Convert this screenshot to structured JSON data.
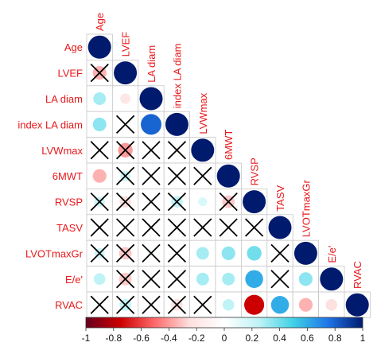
{
  "chart_data": {
    "type": "heatmap",
    "style": "lower-triangle correlogram, circles sized and coloured by correlation, crosses on non-significant cells",
    "variables": [
      "Age",
      "LVEF",
      "LA diam",
      "index LA diam",
      "LVWmax",
      "6MWT",
      "RVSP",
      "TASV",
      "LVOTmaxGr",
      "E/e'",
      "RVAC"
    ],
    "cells": [
      {
        "row": "Age",
        "col": "Age",
        "r": 1.0,
        "significant": true
      },
      {
        "row": "LVEF",
        "col": "Age",
        "r": -0.35,
        "significant": false
      },
      {
        "row": "LVEF",
        "col": "LVEF",
        "r": 1.0,
        "significant": true
      },
      {
        "row": "LA diam",
        "col": "Age",
        "r": 0.3,
        "significant": true
      },
      {
        "row": "LA diam",
        "col": "LVEF",
        "r": -0.2,
        "significant": true
      },
      {
        "row": "LA diam",
        "col": "LA diam",
        "r": 1.0,
        "significant": true
      },
      {
        "row": "index LA diam",
        "col": "Age",
        "r": 0.35,
        "significant": true
      },
      {
        "row": "index LA diam",
        "col": "LVEF",
        "r": -0.05,
        "significant": false
      },
      {
        "row": "index LA diam",
        "col": "LA diam",
        "r": 0.8,
        "significant": true
      },
      {
        "row": "index LA diam",
        "col": "index LA diam",
        "r": 1.0,
        "significant": true
      },
      {
        "row": "LVWmax",
        "col": "Age",
        "r": -0.05,
        "significant": false
      },
      {
        "row": "LVWmax",
        "col": "LVEF",
        "r": -0.4,
        "significant": false
      },
      {
        "row": "LVWmax",
        "col": "LA diam",
        "r": -0.05,
        "significant": false
      },
      {
        "row": "LVWmax",
        "col": "index LA diam",
        "r": -0.1,
        "significant": false
      },
      {
        "row": "LVWmax",
        "col": "LVWmax",
        "r": 1.0,
        "significant": true
      },
      {
        "row": "6MWT",
        "col": "Age",
        "r": -0.35,
        "significant": true
      },
      {
        "row": "6MWT",
        "col": "LVEF",
        "r": 0.2,
        "significant": false
      },
      {
        "row": "6MWT",
        "col": "LA diam",
        "r": -0.05,
        "significant": false
      },
      {
        "row": "6MWT",
        "col": "index LA diam",
        "r": -0.05,
        "significant": false
      },
      {
        "row": "6MWT",
        "col": "LVWmax",
        "r": 0.05,
        "significant": false
      },
      {
        "row": "6MWT",
        "col": "6MWT",
        "r": 1.0,
        "significant": true
      },
      {
        "row": "RVSP",
        "col": "Age",
        "r": 0.2,
        "significant": false
      },
      {
        "row": "RVSP",
        "col": "LVEF",
        "r": -0.25,
        "significant": false
      },
      {
        "row": "RVSP",
        "col": "LA diam",
        "r": -0.05,
        "significant": false
      },
      {
        "row": "RVSP",
        "col": "index LA diam",
        "r": 0.25,
        "significant": false
      },
      {
        "row": "RVSP",
        "col": "LVWmax",
        "r": 0.15,
        "significant": true
      },
      {
        "row": "RVSP",
        "col": "6MWT",
        "r": -0.3,
        "significant": false
      },
      {
        "row": "RVSP",
        "col": "RVSP",
        "r": 1.0,
        "significant": true
      },
      {
        "row": "TASV",
        "col": "Age",
        "r": 0.05,
        "significant": false
      },
      {
        "row": "TASV",
        "col": "LVEF",
        "r": -0.05,
        "significant": false
      },
      {
        "row": "TASV",
        "col": "LA diam",
        "r": 0.05,
        "significant": false
      },
      {
        "row": "TASV",
        "col": "index LA diam",
        "r": -0.05,
        "significant": false
      },
      {
        "row": "TASV",
        "col": "LVWmax",
        "r": 0.05,
        "significant": false
      },
      {
        "row": "TASV",
        "col": "6MWT",
        "r": 0.05,
        "significant": false
      },
      {
        "row": "TASV",
        "col": "RVSP",
        "r": -0.05,
        "significant": false
      },
      {
        "row": "TASV",
        "col": "TASV",
        "r": 1.0,
        "significant": true
      },
      {
        "row": "LVOTmaxGr",
        "col": "Age",
        "r": 0.2,
        "significant": false
      },
      {
        "row": "LVOTmaxGr",
        "col": "LVEF",
        "r": -0.3,
        "significant": false
      },
      {
        "row": "LVOTmaxGr",
        "col": "LA diam",
        "r": 0.05,
        "significant": false
      },
      {
        "row": "LVOTmaxGr",
        "col": "index LA diam",
        "r": -0.05,
        "significant": false
      },
      {
        "row": "LVOTmaxGr",
        "col": "LVWmax",
        "r": 0.3,
        "significant": true
      },
      {
        "row": "LVOTmaxGr",
        "col": "6MWT",
        "r": 0.35,
        "significant": true
      },
      {
        "row": "LVOTmaxGr",
        "col": "RVSP",
        "r": 0.4,
        "significant": true
      },
      {
        "row": "LVOTmaxGr",
        "col": "TASV",
        "r": 0.05,
        "significant": false
      },
      {
        "row": "LVOTmaxGr",
        "col": "LVOTmaxGr",
        "r": 1.0,
        "significant": true
      },
      {
        "row": "E/e'",
        "col": "Age",
        "r": 0.25,
        "significant": true
      },
      {
        "row": "E/e'",
        "col": "LVEF",
        "r": -0.3,
        "significant": false
      },
      {
        "row": "E/e'",
        "col": "LA diam",
        "r": 0.05,
        "significant": false
      },
      {
        "row": "E/e'",
        "col": "index LA diam",
        "r": -0.05,
        "significant": false
      },
      {
        "row": "E/e'",
        "col": "LVWmax",
        "r": 0.3,
        "significant": true
      },
      {
        "row": "E/e'",
        "col": "6MWT",
        "r": 0.3,
        "significant": true
      },
      {
        "row": "E/e'",
        "col": "RVSP",
        "r": 0.6,
        "significant": true
      },
      {
        "row": "E/e'",
        "col": "TASV",
        "r": 0.05,
        "significant": false
      },
      {
        "row": "E/e'",
        "col": "LVOTmaxGr",
        "r": 0.35,
        "significant": true
      },
      {
        "row": "E/e'",
        "col": "E/e'",
        "r": 1.0,
        "significant": true
      },
      {
        "row": "RVAC",
        "col": "Age",
        "r": -0.05,
        "significant": false
      },
      {
        "row": "RVAC",
        "col": "LVEF",
        "r": 0.25,
        "significant": false
      },
      {
        "row": "RVAC",
        "col": "LA diam",
        "r": -0.05,
        "significant": false
      },
      {
        "row": "RVAC",
        "col": "index LA diam",
        "r": -0.25,
        "significant": false
      },
      {
        "row": "RVAC",
        "col": "LVWmax",
        "r": 0.05,
        "significant": false
      },
      {
        "row": "RVAC",
        "col": "6MWT",
        "r": 0.25,
        "significant": true
      },
      {
        "row": "RVAC",
        "col": "RVSP",
        "r": -0.75,
        "significant": true
      },
      {
        "row": "RVAC",
        "col": "TASV",
        "r": 0.6,
        "significant": true
      },
      {
        "row": "RVAC",
        "col": "LVOTmaxGr",
        "r": -0.35,
        "significant": true
      },
      {
        "row": "RVAC",
        "col": "E/e'",
        "r": -0.25,
        "significant": true
      },
      {
        "row": "RVAC",
        "col": "RVAC",
        "r": 1.0,
        "significant": true
      }
    ],
    "colorbar": {
      "min": -1,
      "max": 1,
      "ticks": [
        "-1",
        "-0.8",
        "-0.6",
        "-0.4",
        "-0.2",
        "0",
        "0.2",
        "0.4",
        "0.6",
        "0.8",
        "1"
      ],
      "colors": [
        "#67001f",
        "#cc0000",
        "#ff6b6b",
        "#fde0e0",
        "#ffffff",
        "#bff3f6",
        "#3fd0e6",
        "#1e76e8",
        "#001a6e"
      ]
    },
    "label_color": "#e8191c",
    "cross_color": "#000000"
  }
}
